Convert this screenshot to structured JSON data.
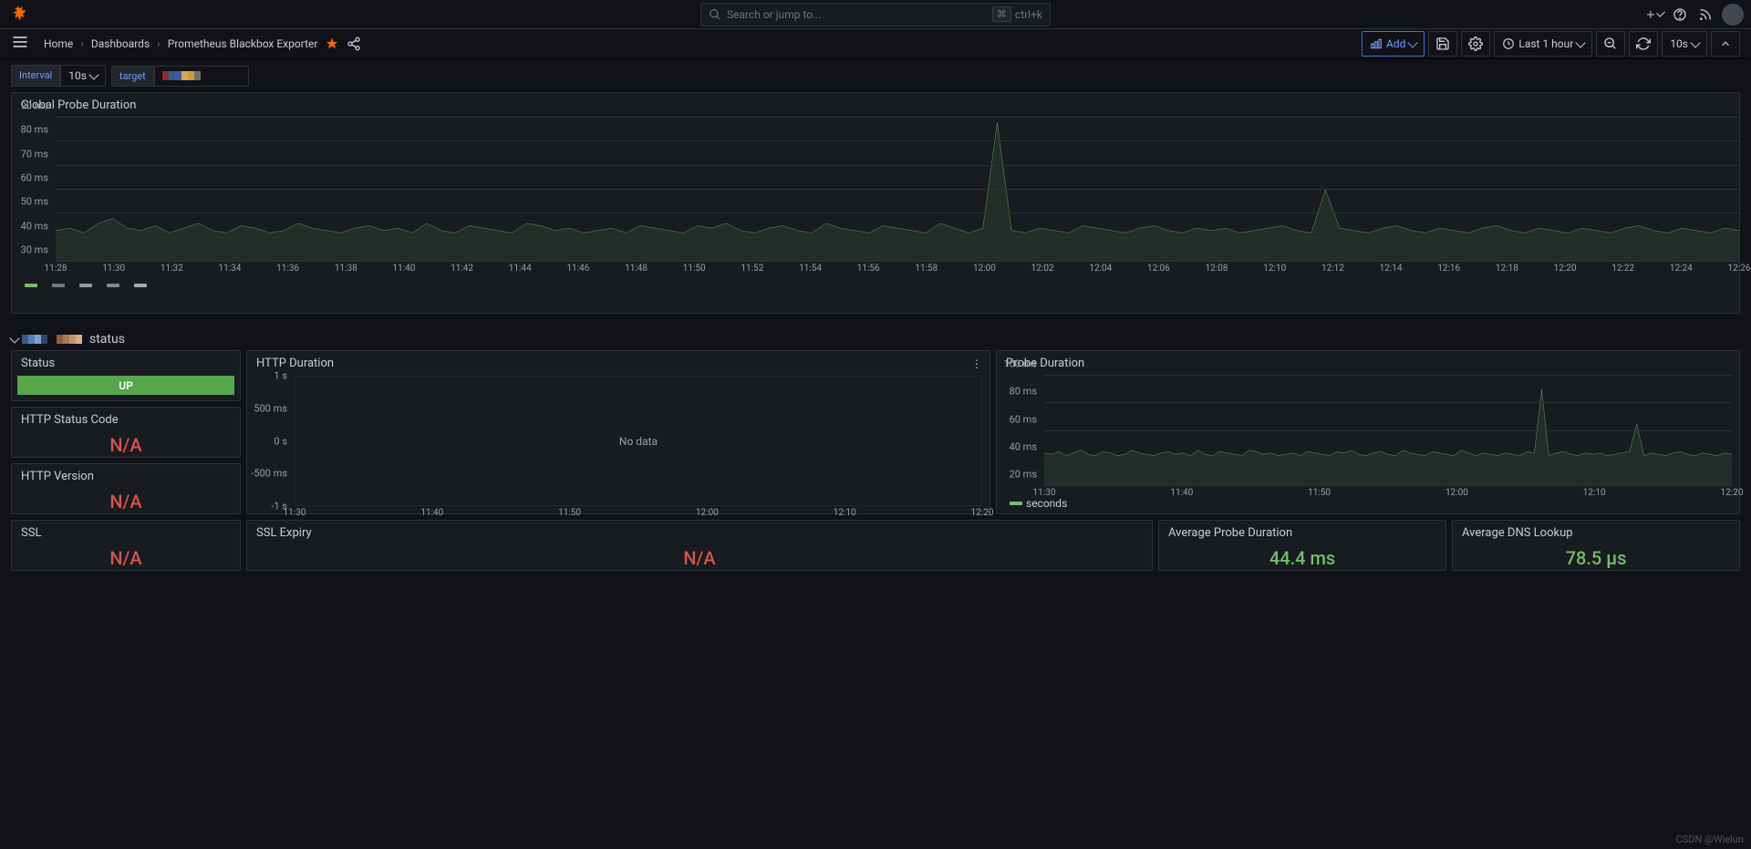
{
  "logo_color": "#f46800",
  "search": {
    "placeholder": "Search or jump to...",
    "shortcut_icon": "⌘",
    "shortcut": "ctrl+k"
  },
  "top_icons": [
    "plus-icon",
    "help-icon",
    "rss-icon",
    "avatar"
  ],
  "breadcrumb": {
    "home": "Home",
    "dashboards": "Dashboards",
    "current": "Prometheus Blackbox Exporter"
  },
  "nav": {
    "add": "Add",
    "time_range": "Last 1 hour",
    "refresh_interval": "10s"
  },
  "vars": {
    "interval_label": "Interval",
    "interval_val": "10s",
    "target_label": "target",
    "target_swatches": [
      "#8b2e2e",
      "#2e5e8b",
      "#3a5ca8",
      "#d4a84b",
      "#c99a39",
      "#6e6e6e"
    ]
  },
  "global_chart": {
    "title": "Global Probe Duration",
    "ylim": [
      30,
      90
    ],
    "ytick_step": 10,
    "yunit": "ms",
    "xlabels": [
      "11:28",
      "11:30",
      "11:32",
      "11:34",
      "11:36",
      "11:38",
      "11:40",
      "11:42",
      "11:44",
      "11:46",
      "11:48",
      "11:50",
      "11:52",
      "11:54",
      "11:56",
      "11:58",
      "12:00",
      "12:02",
      "12:04",
      "12:06",
      "12:08",
      "12:10",
      "12:12",
      "12:14",
      "12:16",
      "12:18",
      "12:20",
      "12:22",
      "12:24",
      "12:26"
    ],
    "line_color": "#73bf69",
    "grid_color": "#2c3235",
    "series": [
      43,
      44,
      42,
      46,
      48,
      44,
      43,
      45,
      42,
      44,
      46,
      43,
      42,
      45,
      44,
      42,
      43,
      46,
      44,
      43,
      42,
      44,
      45,
      43,
      44,
      42,
      46,
      43,
      42,
      45,
      44,
      43,
      42,
      46,
      45,
      43,
      44,
      42,
      43,
      44,
      42,
      45,
      44,
      43,
      42,
      45,
      44,
      46,
      43,
      42,
      44,
      45,
      43,
      42,
      46,
      44,
      43,
      42,
      45,
      44,
      43,
      42,
      46,
      44,
      42,
      44,
      88,
      43,
      42,
      44,
      43,
      42,
      45,
      44,
      43,
      42,
      44,
      45,
      43,
      42,
      44,
      43,
      44,
      42,
      43,
      44,
      45,
      43,
      42,
      60,
      44,
      43,
      42,
      44,
      45,
      43,
      42,
      44,
      43,
      42,
      44,
      45,
      43,
      42,
      44,
      43,
      42,
      44,
      43,
      42,
      44,
      45,
      43,
      42,
      44,
      43,
      42,
      44,
      43
    ],
    "legend_colors": [
      "#73bf69",
      "#777",
      "#999",
      "#888",
      "#aaa"
    ]
  },
  "row_title": "status",
  "row_swatch1": [
    "#3d5a80",
    "#5b7fb3",
    "#7ba3d8",
    "#2f4663"
  ],
  "row_swatch2": [
    "#8b5e3c",
    "#a87a56",
    "#c2956e",
    "#d8af87"
  ],
  "status": {
    "title": "Status",
    "value": "UP",
    "color": "#56a64b"
  },
  "http_code": {
    "title": "HTTP Status Code",
    "value": "N/A"
  },
  "http_version": {
    "title": "HTTP Version",
    "value": "N/A"
  },
  "http_duration": {
    "title": "HTTP Duration",
    "nodata": "No data",
    "ylabels": [
      "1 s",
      "500 ms",
      "0 s",
      "-500 ms",
      "-1 s"
    ],
    "xlabels": [
      "11:30",
      "11:40",
      "11:50",
      "12:00",
      "12:10",
      "12:20"
    ]
  },
  "probe_duration": {
    "title": "Probe Duration",
    "ylim": [
      20,
      100
    ],
    "ytick_step": 20,
    "yunit": "ms",
    "xlabels": [
      "11:30",
      "11:40",
      "11:50",
      "12:00",
      "12:10",
      "12:20"
    ],
    "line_color": "#73bf69",
    "legend": "seconds",
    "series": [
      44,
      43,
      45,
      42,
      44,
      46,
      43,
      42,
      45,
      44,
      42,
      43,
      46,
      44,
      43,
      42,
      44,
      45,
      43,
      44,
      42,
      46,
      43,
      42,
      45,
      44,
      43,
      42,
      46,
      45,
      43,
      44,
      42,
      43,
      44,
      42,
      45,
      44,
      43,
      42,
      45,
      44,
      46,
      43,
      42,
      44,
      45,
      43,
      42,
      46,
      44,
      43,
      42,
      45,
      44,
      43,
      42,
      46,
      44,
      42,
      44,
      43,
      42,
      44,
      43,
      42,
      45,
      44,
      90,
      42,
      44,
      45,
      43,
      42,
      44,
      43,
      44,
      42,
      43,
      44,
      45,
      65,
      42,
      44,
      43,
      42,
      44,
      45,
      43,
      42,
      44,
      43,
      42,
      44,
      43
    ]
  },
  "ssl": {
    "title": "SSL",
    "value": "N/A"
  },
  "ssl_expiry": {
    "title": "SSL Expiry",
    "value": "N/A"
  },
  "avg_probe": {
    "title": "Average Probe Duration",
    "value": "44.4 ms"
  },
  "avg_dns": {
    "title": "Average DNS Lookup",
    "value": "78.5 µs"
  },
  "watermark": "CSDN @Wielun"
}
